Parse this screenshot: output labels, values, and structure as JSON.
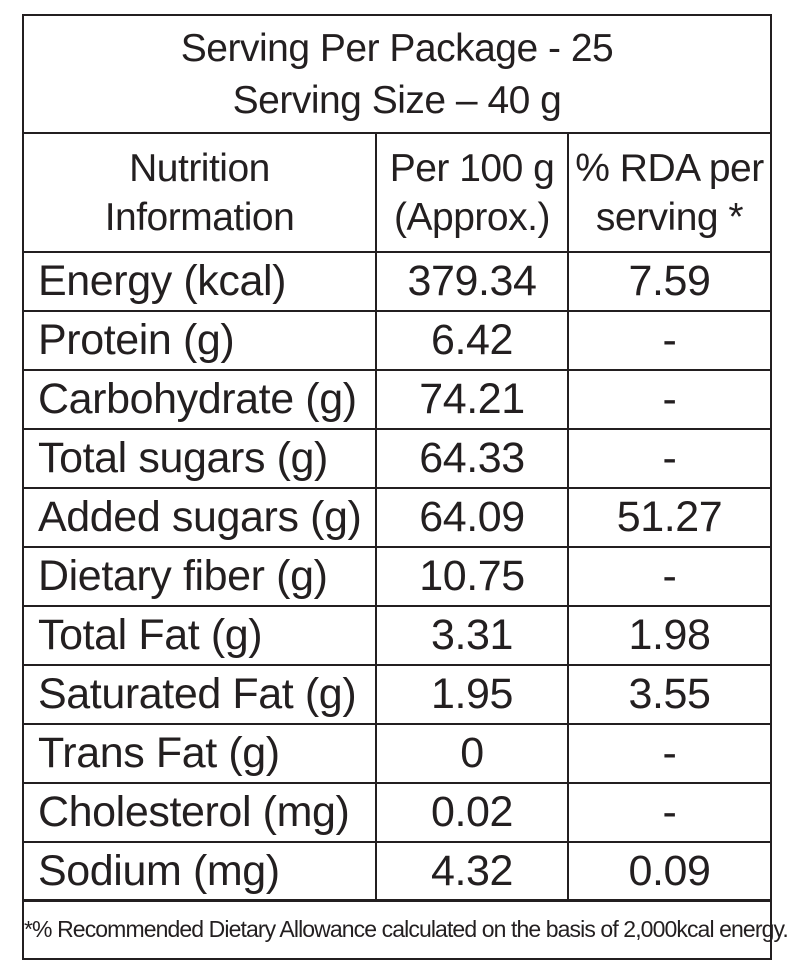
{
  "header": {
    "line1": "Serving Per Package - 25",
    "line2": "Serving Size – 40 g"
  },
  "columns": {
    "name_line1": "Nutrition",
    "name_line2": "Information",
    "per100_line1": "Per 100 g",
    "per100_line2": "(Approx.)",
    "rda_line1": "% RDA per",
    "rda_line2": "serving *"
  },
  "rows": [
    {
      "name": "Energy (kcal)",
      "per100": "379.34",
      "rda": "7.59"
    },
    {
      "name": "Protein (g)",
      "per100": "6.42",
      "rda": "-"
    },
    {
      "name": "Carbohydrate (g)",
      "per100": "74.21",
      "rda": "-"
    },
    {
      "name": "Total sugars (g)",
      "per100": "64.33",
      "rda": "-"
    },
    {
      "name": "Added sugars (g)",
      "per100": "64.09",
      "rda": "51.27"
    },
    {
      "name": "Dietary fiber (g)",
      "per100": "10.75",
      "rda": "-"
    },
    {
      "name": "Total Fat (g)",
      "per100": "3.31",
      "rda": "1.98"
    },
    {
      "name": "Saturated Fat (g)",
      "per100": "1.95",
      "rda": "3.55"
    },
    {
      "name": "Trans Fat (g)",
      "per100": "0",
      "rda": "-"
    },
    {
      "name": "Cholesterol (mg)",
      "per100": "0.02",
      "rda": "-"
    },
    {
      "name": "Sodium (mg)",
      "per100": "4.32",
      "rda": "0.09"
    }
  ],
  "footnote": "*% Recommended Dietary Allowance calculated on the basis of 2,000kcal energy."
}
